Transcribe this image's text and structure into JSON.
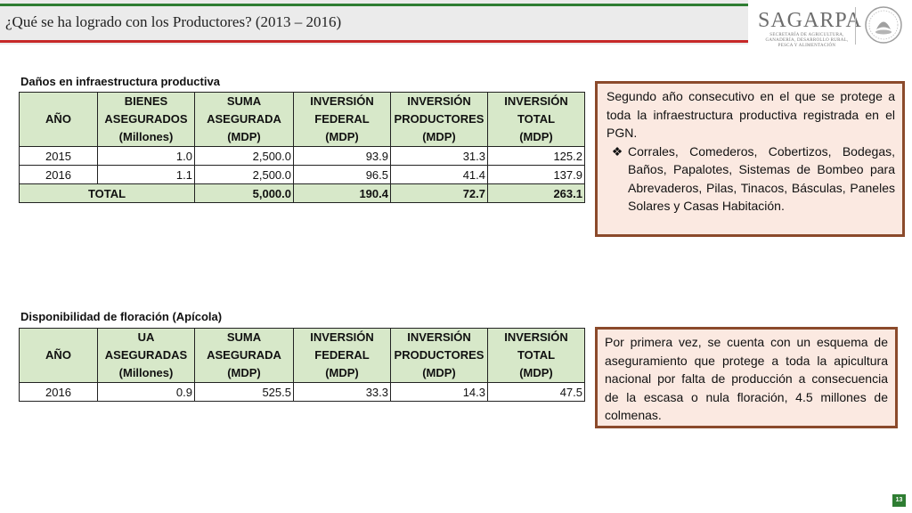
{
  "header": {
    "title": "¿Qué se ha logrado con los Productores? (2013 – 2016)",
    "logo_text": "SAGARPA",
    "logo_subtitle": "SECRETARÍA DE AGRICULTURA, GANADERÍA, DESARROLLO RURAL, PESCA Y ALIMENTACIÓN"
  },
  "table1": {
    "title": "Daños en infraestructura productiva",
    "columns": [
      {
        "l1": "AÑO",
        "l2": "",
        "l3": ""
      },
      {
        "l1": "BIENES",
        "l2": "ASEGURADOS",
        "l3": "(Millones)"
      },
      {
        "l1": "SUMA",
        "l2": "ASEGURADA",
        "l3": "(MDP)"
      },
      {
        "l1": "INVERSIÓN",
        "l2": "FEDERAL",
        "l3": "(MDP)"
      },
      {
        "l1": "INVERSIÓN",
        "l2": "PRODUCTORES",
        "l3": "(MDP)"
      },
      {
        "l1": "INVERSIÓN",
        "l2": "TOTAL",
        "l3": "(MDP)"
      }
    ],
    "rows": [
      [
        "2015",
        "1.0",
        "2,500.0",
        "93.9",
        "31.3",
        "125.2"
      ],
      [
        "2016",
        "1.1",
        "2,500.0",
        "96.5",
        "41.4",
        "137.9"
      ]
    ],
    "total_row": [
      "TOTAL",
      "5,000.0",
      "190.4",
      "72.7",
      "263.1"
    ]
  },
  "note1": {
    "text": "Segundo año consecutivo en el que se protege a toda la infraestructura productiva registrada en el PGN.",
    "bullet_icon": "diamond-bullet-icon",
    "bullet_symbol": "❖",
    "bullet": "Corrales, Comederos, Cobertizos, Bodegas, Baños, Papalotes, Sistemas de Bombeo para Abrevaderos, Pilas, Tinacos, Básculas, Paneles Solares y Casas Habitación."
  },
  "table2": {
    "title": "Disponibilidad de floración (Apícola)",
    "columns": [
      {
        "l1": "AÑO",
        "l2": "",
        "l3": ""
      },
      {
        "l1": "UA",
        "l2": "ASEGURADAS",
        "l3": "(Millones)"
      },
      {
        "l1": "SUMA",
        "l2": "ASEGURADA",
        "l3": "(MDP)"
      },
      {
        "l1": "INVERSIÓN",
        "l2": "FEDERAL",
        "l3": "(MDP)"
      },
      {
        "l1": "INVERSIÓN",
        "l2": "PRODUCTORES",
        "l3": "(MDP)"
      },
      {
        "l1": "INVERSIÓN",
        "l2": "TOTAL",
        "l3": "(MDP)"
      }
    ],
    "rows": [
      [
        "2016",
        "0.9",
        "525.5",
        "33.3",
        "14.3",
        "47.5"
      ]
    ]
  },
  "note2": {
    "text": "Por primera vez, se cuenta con un esquema de aseguramiento que protege a toda la apicultura nacional por falta de producción a consecuencia de la escasa o nula floración, 4.5 millones de colmenas."
  },
  "page_number": "13",
  "colors": {
    "header_green": "#2e7d32",
    "header_red": "#c62828",
    "table_header_fill": "#d7e8c9",
    "note_border": "#8b4a2b",
    "note_fill": "#fbe9e1"
  }
}
